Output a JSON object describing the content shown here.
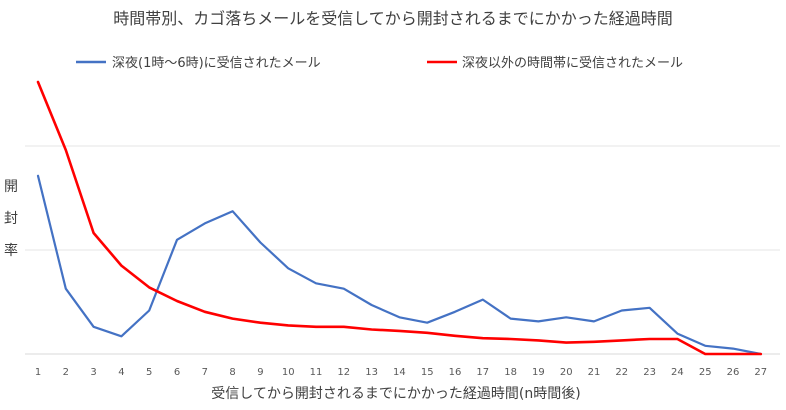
{
  "chart_data": {
    "type": "line",
    "title": "時間帯別、カゴ落ちメールを受信してから開封されるまでにかかった経過時間",
    "xlabel": "受信してから開封されるまでにかかった経過時間(n時間後)",
    "ylabel": "開封率",
    "categories": [
      "1",
      "2",
      "3",
      "4",
      "5",
      "6",
      "7",
      "8",
      "9",
      "10",
      "11",
      "12",
      "13",
      "14",
      "15",
      "16",
      "17",
      "18",
      "19",
      "20",
      "21",
      "22",
      "23",
      "24",
      "25",
      "26",
      "27"
    ],
    "ylim": [
      0,
      1
    ],
    "grid": "horizontal",
    "legend_position": "top",
    "series": [
      {
        "name": "深夜(1時～6時)に受信されたメール",
        "color": "#4472C4",
        "values": [
          0.655,
          0.24,
          0.1,
          0.065,
          0.16,
          0.42,
          0.48,
          0.525,
          0.41,
          0.315,
          0.26,
          0.24,
          0.18,
          0.135,
          0.115,
          0.155,
          0.2,
          0.13,
          0.12,
          0.135,
          0.12,
          0.16,
          0.17,
          0.075,
          0.03,
          0.02,
          0.0
        ]
      },
      {
        "name": "深夜以外の時間帯に受信されたメール",
        "color": "#FF0000",
        "values": [
          1.0,
          0.75,
          0.445,
          0.325,
          0.245,
          0.195,
          0.155,
          0.13,
          0.115,
          0.105,
          0.1,
          0.1,
          0.09,
          0.085,
          0.078,
          0.067,
          0.058,
          0.055,
          0.05,
          0.042,
          0.045,
          0.05,
          0.055,
          0.055,
          0.0,
          0.0,
          0.0
        ]
      }
    ]
  }
}
